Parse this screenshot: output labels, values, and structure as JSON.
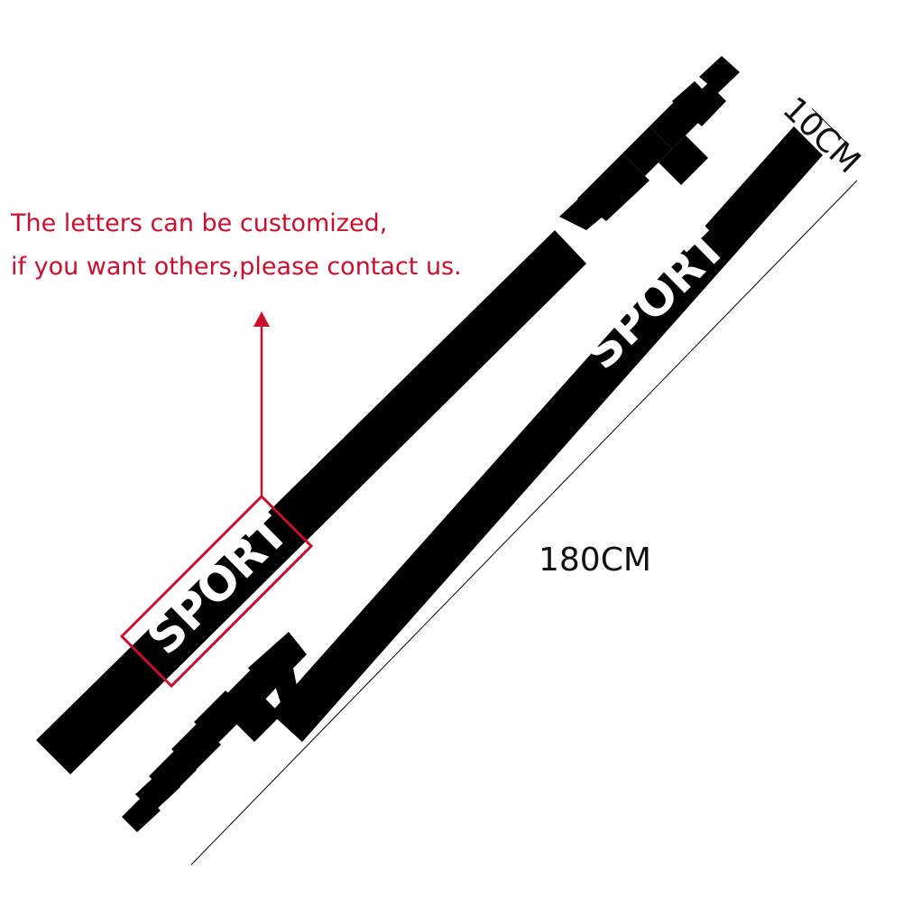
{
  "note": {
    "line1": "The letters can be customized,",
    "line2": "if you want others,please contact us.",
    "color": "#c8102e"
  },
  "stripes": {
    "text": "SPORT",
    "stripe_color": "#000000",
    "text_color": "#ffffff"
  },
  "dimensions": {
    "width": "10CM",
    "length": "180CM"
  },
  "highlight_color": "#c8102e"
}
